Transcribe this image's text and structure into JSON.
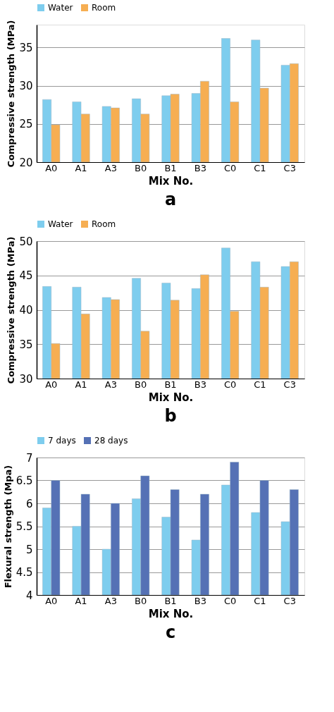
{
  "chart_data": [
    {
      "type": "bar",
      "xlabel": "Mix No.",
      "ylabel": "Compressive strength (MPa)",
      "categories": [
        "A0",
        "A1",
        "A3",
        "B0",
        "B1",
        "B3",
        "C0",
        "C1",
        "C3"
      ],
      "series": [
        {
          "name": "Water",
          "color": "#7ecdee",
          "values": [
            28.2,
            27.9,
            27.3,
            28.3,
            28.7,
            29.0,
            36.2,
            36.0,
            32.7
          ]
        },
        {
          "name": "Room",
          "color": "#f6ae52",
          "values": [
            24.9,
            26.3,
            27.1,
            26.3,
            28.9,
            30.6,
            27.9,
            29.7,
            32.9
          ]
        }
      ],
      "ylim": [
        20,
        38
      ],
      "yticks": [
        20,
        25,
        30,
        35
      ],
      "grid": "y",
      "legend": "top",
      "annotations": [
        "a"
      ]
    },
    {
      "type": "bar",
      "xlabel": "Mix No.",
      "ylabel": "Compressive strength (MPa)",
      "categories": [
        "A0",
        "A1",
        "A3",
        "B0",
        "B1",
        "B3",
        "C0",
        "C1",
        "C3"
      ],
      "series": [
        {
          "name": "Water",
          "color": "#7ecdee",
          "values": [
            43.4,
            43.3,
            41.8,
            44.6,
            43.9,
            43.1,
            49.0,
            47.0,
            46.3
          ]
        },
        {
          "name": "Room",
          "color": "#f6ae52",
          "values": [
            35.1,
            39.4,
            41.5,
            36.9,
            41.4,
            45.1,
            39.8,
            43.3,
            47.0
          ]
        }
      ],
      "ylim": [
        30,
        50
      ],
      "yticks": [
        30,
        35,
        40,
        45,
        50
      ],
      "grid": "y",
      "legend": "top",
      "annotations": [
        "b"
      ]
    },
    {
      "type": "bar",
      "xlabel": "Mix No.",
      "ylabel": "Flexural strength (Mpa)",
      "categories": [
        "A0",
        "A1",
        "A3",
        "B0",
        "B1",
        "B3",
        "C0",
        "C1",
        "C3"
      ],
      "series": [
        {
          "name": "7 days",
          "color": "#7ecdee",
          "values": [
            5.9,
            5.5,
            5.0,
            6.1,
            5.7,
            5.2,
            6.4,
            5.8,
            5.6
          ]
        },
        {
          "name": "28 days",
          "color": "#5571b5",
          "values": [
            6.5,
            6.2,
            6.0,
            6.6,
            6.3,
            6.2,
            6.9,
            6.5,
            6.3
          ]
        }
      ],
      "ylim": [
        4,
        7
      ],
      "yticks": [
        4,
        4.5,
        5,
        5.5,
        6,
        6.5,
        7
      ],
      "grid": "y",
      "legend": "top",
      "annotations": [
        "c"
      ]
    }
  ]
}
